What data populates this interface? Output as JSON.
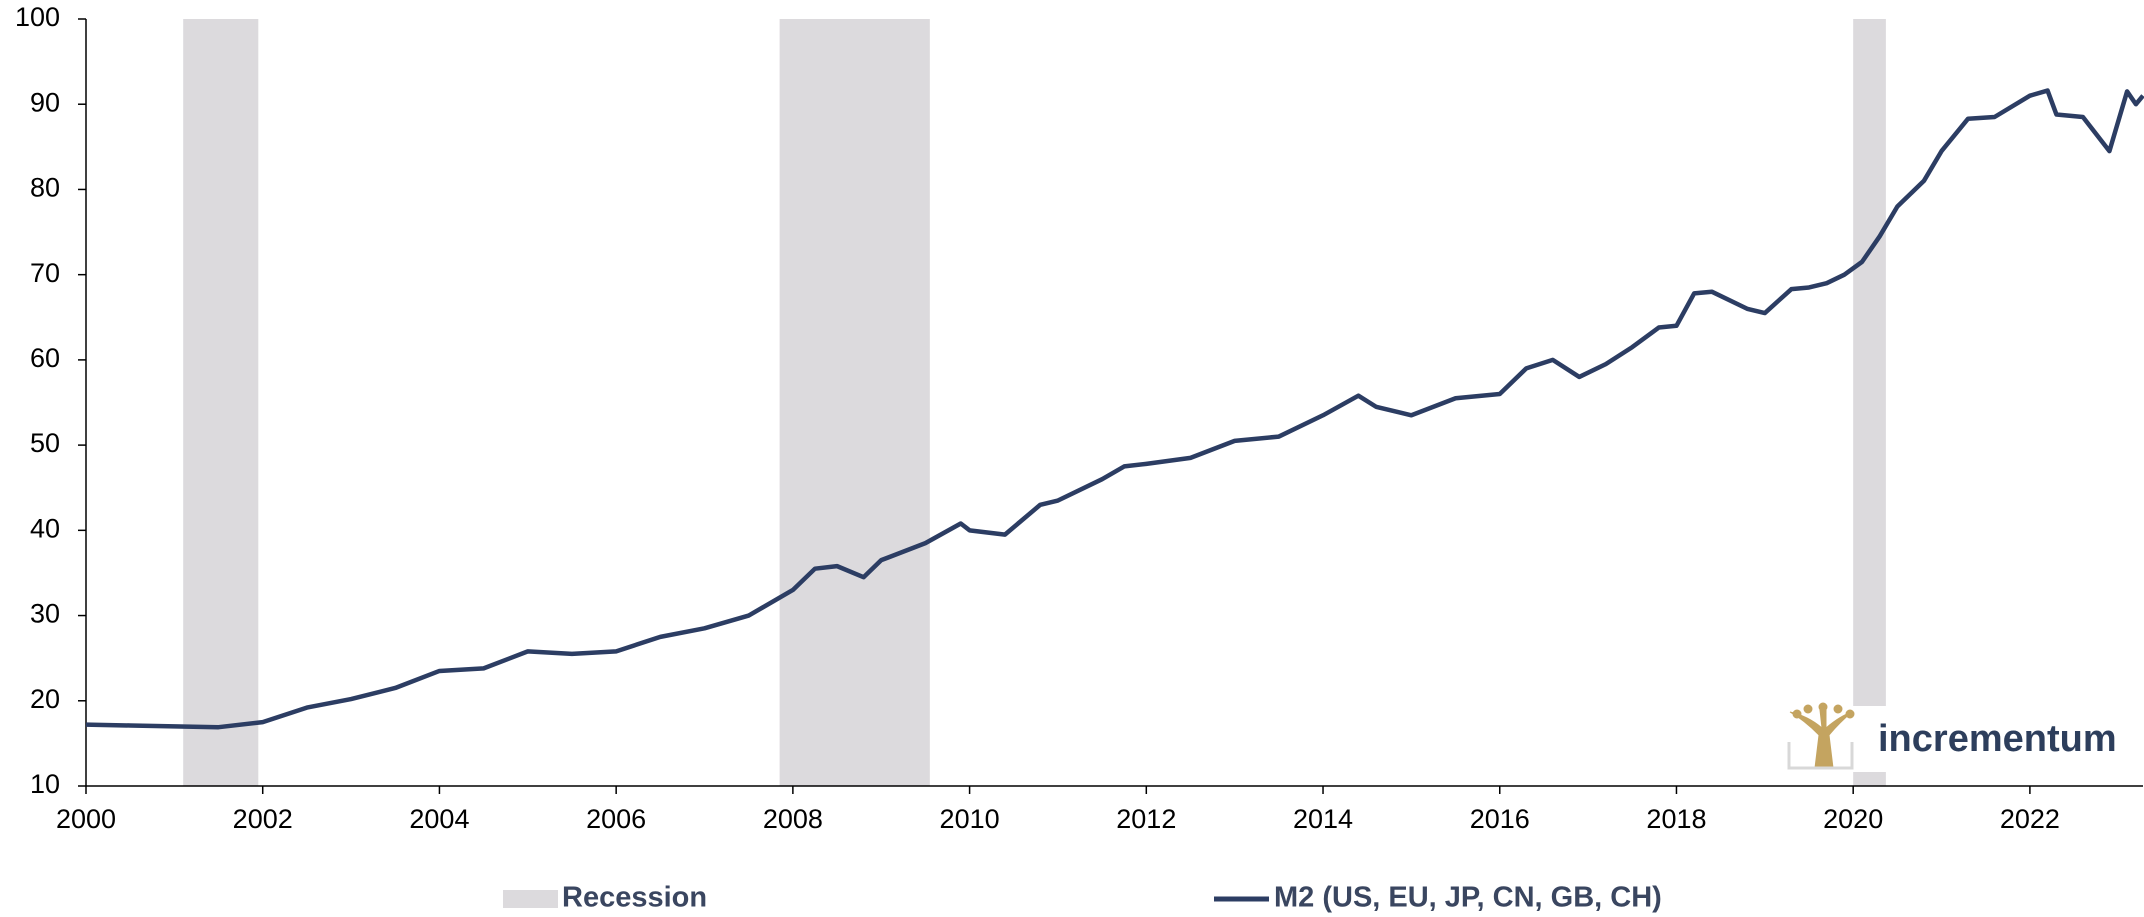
{
  "chart_data": {
    "type": "line",
    "xlim": [
      2000,
      2023.28
    ],
    "xticks": [
      2000,
      2002,
      2004,
      2006,
      2008,
      2010,
      2012,
      2014,
      2016,
      2018,
      2020,
      2022
    ],
    "ylim": [
      10,
      100
    ],
    "yticks": [
      10,
      20,
      30,
      40,
      50,
      60,
      70,
      80,
      90,
      100
    ],
    "band_name": "Recession",
    "band_color": "#dcdadd",
    "bands": [
      {
        "start": 2001.1,
        "end": 2001.95
      },
      {
        "start": 2007.85,
        "end": 2009.55
      },
      {
        "start": 2020.0,
        "end": 2020.37
      }
    ],
    "series": [
      {
        "name": "M2 (US, EU, JP, CN, GB, CH)",
        "color": "#2c3d63",
        "x": [
          2000.0,
          2000.5,
          2001.0,
          2001.5,
          2002.0,
          2002.5,
          2003.0,
          2003.5,
          2004.0,
          2004.5,
          2005.0,
          2005.5,
          2006.0,
          2006.5,
          2007.0,
          2007.5,
          2008.0,
          2008.25,
          2008.5,
          2008.8,
          2009.0,
          2009.5,
          2009.9,
          2010.0,
          2010.4,
          2010.8,
          2011.0,
          2011.5,
          2011.75,
          2012.0,
          2012.5,
          2013.0,
          2013.5,
          2014.0,
          2014.4,
          2014.6,
          2015.0,
          2015.5,
          2016.0,
          2016.3,
          2016.6,
          2016.9,
          2017.2,
          2017.5,
          2017.8,
          2018.0,
          2018.2,
          2018.4,
          2018.8,
          2019.0,
          2019.3,
          2019.5,
          2019.7,
          2019.9,
          2020.1,
          2020.3,
          2020.5,
          2020.8,
          2021.0,
          2021.3,
          2021.6,
          2022.0,
          2022.2,
          2022.3,
          2022.6,
          2022.9,
          2023.1,
          2023.2,
          2023.28
        ],
        "values": [
          17.2,
          17.1,
          17.0,
          16.9,
          17.5,
          19.2,
          20.2,
          21.5,
          23.5,
          23.8,
          25.8,
          25.5,
          25.8,
          27.5,
          28.5,
          30.0,
          33.0,
          35.5,
          35.8,
          34.5,
          36.5,
          38.5,
          40.8,
          40.0,
          39.5,
          43.0,
          43.5,
          46.0,
          47.5,
          47.8,
          48.5,
          50.5,
          51.0,
          53.5,
          55.8,
          54.5,
          53.5,
          55.5,
          56.0,
          59.0,
          60.0,
          58.0,
          59.5,
          61.5,
          63.8,
          64.0,
          67.8,
          68.0,
          66.0,
          65.5,
          68.3,
          68.5,
          69.0,
          70.0,
          71.5,
          74.5,
          78.0,
          81.0,
          84.5,
          88.3,
          88.5,
          91.0,
          91.6,
          88.8,
          88.5,
          84.5,
          91.5,
          90.0,
          91.0
        ]
      }
    ]
  },
  "logo": "incrementum"
}
